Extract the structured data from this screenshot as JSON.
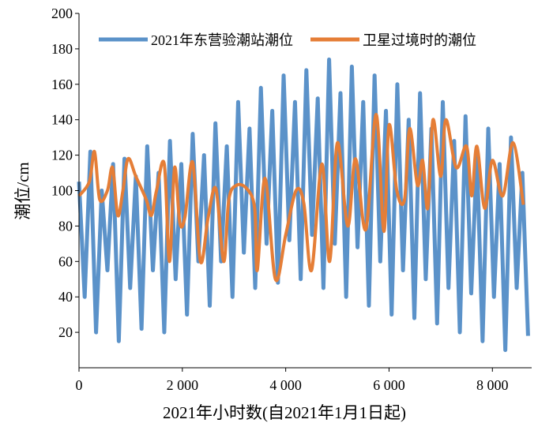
{
  "chart_data": {
    "type": "line",
    "xlabel": "2021年小时数(自2021年1月1日起)",
    "ylabel": "潮位/cm",
    "xlim": [
      0,
      8760
    ],
    "ylim": [
      0,
      200
    ],
    "xticks": [
      0,
      {
        "value": 2000,
        "label": "2 000"
      },
      {
        "value": 4000,
        "label": "4 000"
      },
      {
        "value": 6000,
        "label": "6 000"
      },
      {
        "value": 8000,
        "label": "8 000"
      }
    ],
    "yticks": [
      20,
      40,
      60,
      80,
      100,
      120,
      140,
      160,
      180,
      200
    ],
    "legend": "top",
    "series": [
      {
        "name": "2021年东营验潮站潮位",
        "color": "#5b92c9",
        "smooth": false,
        "x": [
          0,
          110,
          220,
          330,
          440,
          550,
          660,
          770,
          880,
          990,
          1100,
          1210,
          1320,
          1430,
          1540,
          1650,
          1760,
          1870,
          1980,
          2090,
          2200,
          2310,
          2420,
          2530,
          2640,
          2750,
          2860,
          2970,
          3080,
          3190,
          3300,
          3410,
          3520,
          3630,
          3740,
          3850,
          3960,
          4070,
          4180,
          4290,
          4400,
          4510,
          4620,
          4730,
          4840,
          4950,
          5060,
          5170,
          5280,
          5390,
          5500,
          5610,
          5720,
          5830,
          5940,
          6050,
          6160,
          6270,
          6380,
          6490,
          6600,
          6710,
          6820,
          6930,
          7040,
          7150,
          7260,
          7370,
          7480,
          7590,
          7700,
          7810,
          7920,
          8030,
          8140,
          8250,
          8360,
          8470,
          8580,
          8690
        ],
        "values": [
          105,
          40,
          122,
          20,
          100,
          55,
          115,
          15,
          118,
          45,
          108,
          22,
          125,
          55,
          110,
          20,
          128,
          50,
          115,
          30,
          132,
          60,
          120,
          35,
          138,
          60,
          125,
          40,
          150,
          65,
          135,
          45,
          158,
          70,
          145,
          48,
          165,
          72,
          150,
          50,
          168,
          75,
          152,
          45,
          174,
          70,
          155,
          40,
          170,
          68,
          150,
          35,
          165,
          60,
          145,
          30,
          160,
          55,
          140,
          28,
          155,
          50,
          135,
          25,
          150,
          45,
          128,
          20,
          142,
          42,
          120,
          15,
          135,
          40,
          115,
          10,
          130,
          45,
          110,
          18
        ]
      },
      {
        "name": "卫星过境时的潮位",
        "color": "#e57e37",
        "smooth": true,
        "x": [
          0,
          200,
          300,
          400,
          550,
          650,
          750,
          850,
          950,
          1100,
          1300,
          1400,
          1500,
          1650,
          1750,
          1850,
          1950,
          2050,
          2200,
          2350,
          2500,
          2650,
          2800,
          2900,
          3050,
          3250,
          3400,
          3450,
          3600,
          3800,
          4000,
          4200,
          4350,
          4500,
          4700,
          4850,
          5000,
          5200,
          5350,
          5550,
          5750,
          5900,
          6000,
          6150,
          6300,
          6400,
          6550,
          6650,
          6750,
          6850,
          7000,
          7100,
          7300,
          7500,
          7600,
          7700,
          7850,
          8000,
          8200,
          8400,
          8600
        ],
        "values": [
          97,
          105,
          122,
          95,
          100,
          113,
          86,
          100,
          118,
          108,
          95,
          86,
          100,
          115,
          60,
          113,
          82,
          85,
          116,
          60,
          85,
          101,
          60,
          95,
          103,
          101,
          90,
          55,
          107,
          50,
          75,
          100,
          93,
          55,
          115,
          60,
          127,
          80,
          118,
          78,
          143,
          77,
          137,
          100,
          95,
          135,
          103,
          117,
          90,
          140,
          108,
          140,
          113,
          125,
          97,
          125,
          90,
          117,
          97,
          127,
          92
        ]
      }
    ]
  }
}
